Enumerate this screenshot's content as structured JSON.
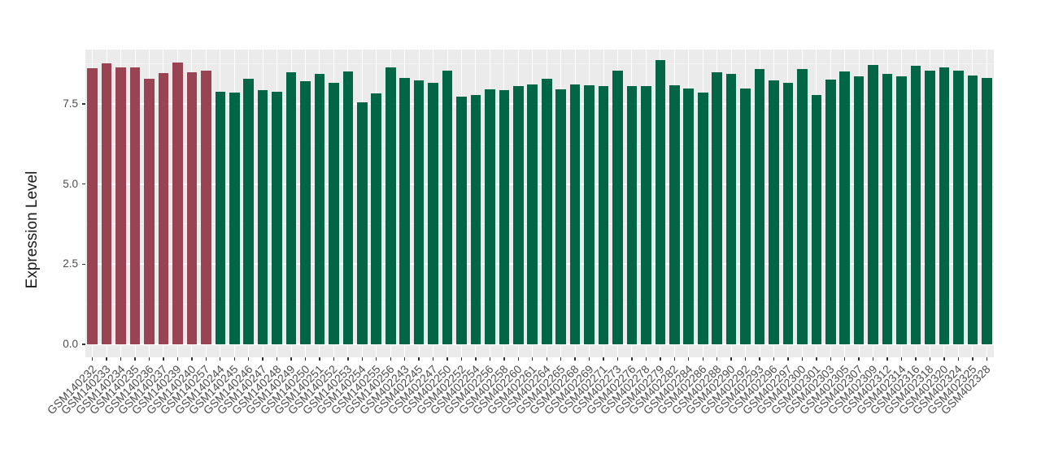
{
  "chart_data": {
    "type": "bar",
    "title": "",
    "ylabel": "Expression Level",
    "xlabel": "",
    "ylim": [
      -0.4,
      9.2
    ],
    "grid": true,
    "legend": false,
    "yticks": [
      {
        "value": 0.0,
        "label": "0.0"
      },
      {
        "value": 2.5,
        "label": "2.5"
      },
      {
        "value": 5.0,
        "label": "5.0"
      },
      {
        "value": 7.5,
        "label": "7.5"
      }
    ],
    "yticks_minor": [
      1.25,
      3.75,
      6.25,
      8.75
    ],
    "categories": [
      "GSM140232",
      "GSM140233",
      "GSM140234",
      "GSM140235",
      "GSM140236",
      "GSM140237",
      "GSM140239",
      "GSM140240",
      "GSM140257",
      "GSM140244",
      "GSM140245",
      "GSM140246",
      "GSM140247",
      "GSM140248",
      "GSM140249",
      "GSM140250",
      "GSM140251",
      "GSM140252",
      "GSM140253",
      "GSM140254",
      "GSM140255",
      "GSM140256",
      "GSM402243",
      "GSM402245",
      "GSM402247",
      "GSM402250",
      "GSM402252",
      "GSM402254",
      "GSM402256",
      "GSM402258",
      "GSM402260",
      "GSM402261",
      "GSM402264",
      "GSM402265",
      "GSM402268",
      "GSM402269",
      "GSM402271",
      "GSM402273",
      "GSM402276",
      "GSM402278",
      "GSM402279",
      "GSM402282",
      "GSM402284",
      "GSM402286",
      "GSM402288",
      "GSM402290",
      "GSM402292",
      "GSM402293",
      "GSM402296",
      "GSM402297",
      "GSM402300",
      "GSM402301",
      "GSM402303",
      "GSM402305",
      "GSM402307",
      "GSM402309",
      "GSM402312",
      "GSM402314",
      "GSM402316",
      "GSM402318",
      "GSM402320",
      "GSM402324",
      "GSM402325",
      "GSM402328"
    ],
    "values": [
      8.61,
      8.76,
      8.63,
      8.64,
      8.28,
      8.46,
      8.8,
      8.5,
      8.53,
      7.88,
      7.85,
      8.28,
      7.92,
      7.88,
      8.49,
      8.22,
      8.43,
      8.17,
      8.51,
      7.54,
      7.82,
      8.64,
      8.3,
      8.24,
      8.15,
      8.53,
      7.73,
      7.79,
      7.96,
      7.92,
      8.06,
      8.11,
      8.28,
      7.96,
      8.11,
      8.09,
      8.06,
      8.54,
      8.06,
      8.05,
      8.88,
      8.09,
      7.98,
      7.86,
      8.5,
      8.44,
      7.99,
      8.59,
      8.23,
      8.17,
      8.59,
      7.77,
      8.26,
      8.51,
      8.36,
      8.72,
      8.44,
      8.36,
      8.68,
      8.53,
      8.63,
      8.55,
      8.39,
      8.31
    ],
    "groups": [
      "maroon",
      "maroon",
      "maroon",
      "maroon",
      "maroon",
      "maroon",
      "maroon",
      "maroon",
      "maroon",
      "green",
      "green",
      "green",
      "green",
      "green",
      "green",
      "green",
      "green",
      "green",
      "green",
      "green",
      "green",
      "green",
      "green",
      "green",
      "green",
      "green",
      "green",
      "green",
      "green",
      "green",
      "green",
      "green",
      "green",
      "green",
      "green",
      "green",
      "green",
      "green",
      "green",
      "green",
      "green",
      "green",
      "green",
      "green",
      "green",
      "green",
      "green",
      "green",
      "green",
      "green",
      "green",
      "green",
      "green",
      "green",
      "green",
      "green",
      "green",
      "green",
      "green",
      "green",
      "green",
      "green",
      "green",
      "green"
    ],
    "palette": {
      "maroon": "#9A4352",
      "green": "#006646"
    },
    "style": {
      "background": "#FFFFFF",
      "panel_bg": "#EBEBEB",
      "grid_major": "#FFFFFF",
      "grid_minor": "#F5F5F5",
      "axis_text": "#4D4D4D",
      "axis_title": "#1A1A1A",
      "tick_mark": "#333333"
    }
  }
}
